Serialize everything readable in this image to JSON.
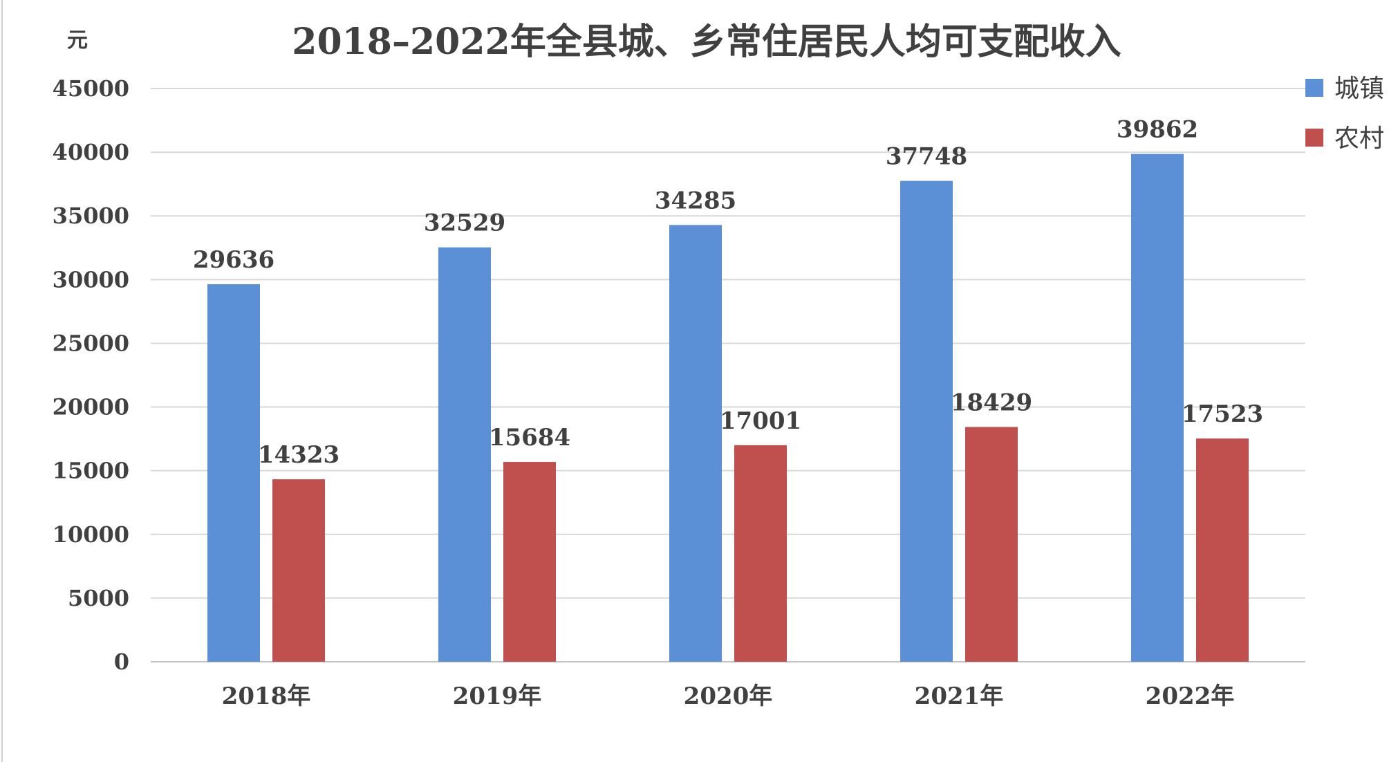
{
  "chart_data": {
    "type": "bar",
    "title": "2018–2022年全县城、乡常住居民人均可支配收入",
    "unit_label": "元",
    "xlabel": "",
    "ylabel": "",
    "categories": [
      "2018年",
      "2019年",
      "2020年",
      "2021年",
      "2022年"
    ],
    "series": [
      {
        "name": "城镇",
        "color": "#5b8fd6",
        "values": [
          29636,
          32529,
          34285,
          37748,
          39862
        ]
      },
      {
        "name": "农村",
        "color": "#c0504d",
        "values": [
          14323,
          15684,
          17001,
          18429,
          17523
        ]
      }
    ],
    "ylim": [
      0,
      45000
    ],
    "yticks": [
      0,
      5000,
      10000,
      15000,
      20000,
      25000,
      30000,
      35000,
      40000,
      45000
    ],
    "grid": true,
    "legend_position": "top-right",
    "data_labels": true
  }
}
